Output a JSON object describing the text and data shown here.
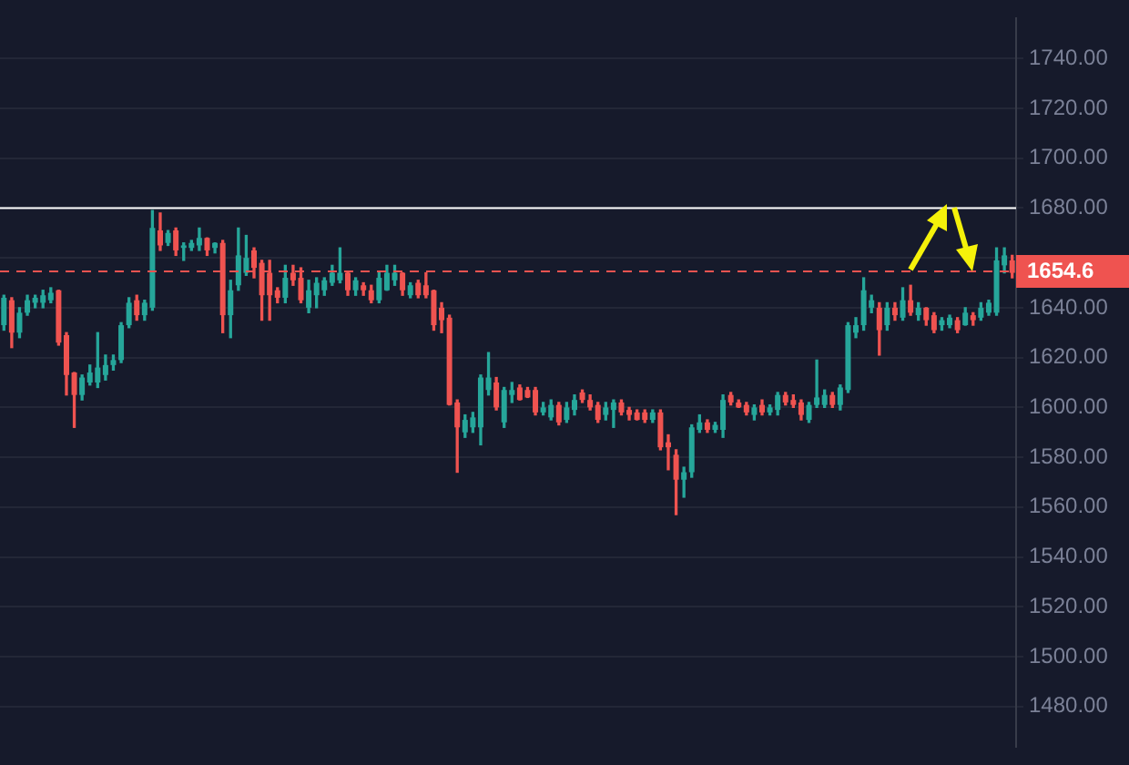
{
  "chart_data": {
    "type": "candlestick",
    "categories": [
      null,
      null,
      null,
      null,
      null,
      null,
      null,
      null,
      null,
      null,
      null,
      null,
      null,
      null,
      null,
      null,
      null,
      null,
      null,
      null,
      null,
      null,
      null,
      null,
      null,
      null,
      null,
      null,
      null,
      null,
      null,
      null,
      null,
      null,
      null,
      null,
      null,
      null,
      null,
      null,
      null,
      null,
      null,
      null,
      null,
      null,
      null,
      null,
      null,
      null,
      null,
      null,
      null,
      null,
      null,
      null,
      null,
      null,
      null,
      null,
      null,
      null,
      null,
      null,
      null,
      null,
      null,
      null,
      null,
      null,
      null,
      null,
      null,
      null,
      null,
      null,
      null,
      null,
      null,
      null,
      null,
      null,
      null,
      null,
      null,
      null,
      null,
      null,
      null,
      null,
      null,
      null,
      null,
      null,
      null,
      null,
      null,
      null,
      null,
      null,
      null,
      null,
      null,
      null,
      null,
      null,
      null,
      null,
      null,
      null,
      null,
      null,
      null,
      null,
      null,
      null,
      null,
      null,
      null,
      null,
      null,
      null,
      null,
      null,
      null,
      null,
      null,
      null,
      null,
      null
    ],
    "ohlc": [
      [
        1633,
        1645,
        1631,
        1644
      ],
      [
        1643,
        1644,
        1624,
        1630
      ],
      [
        1630,
        1640,
        1628,
        1638
      ],
      [
        1638,
        1645,
        1637,
        1643
      ],
      [
        1642,
        1645,
        1640,
        1644
      ],
      [
        1642,
        1647,
        1640,
        1645
      ],
      [
        1643,
        1648,
        1642,
        1646
      ],
      [
        1647,
        1647,
        1625,
        1626
      ],
      [
        1629,
        1630,
        1605,
        1613
      ],
      [
        1614,
        1614,
        1592,
        1605
      ],
      [
        1605,
        1613,
        1603,
        1612
      ],
      [
        1610,
        1617,
        1609,
        1614
      ],
      [
        1610,
        1630,
        1608,
        1616
      ],
      [
        1613,
        1621,
        1611,
        1617
      ],
      [
        1617,
        1621,
        1615,
        1619
      ],
      [
        1619,
        1634,
        1618,
        1633
      ],
      [
        1633,
        1644,
        1632,
        1642
      ],
      [
        1643,
        1645,
        1635,
        1637
      ],
      [
        1637,
        1643,
        1635,
        1642
      ],
      [
        1640,
        1679,
        1639,
        1672
      ],
      [
        1671,
        1678,
        1663,
        1665
      ],
      [
        1666,
        1671,
        1665,
        1670
      ],
      [
        1671,
        1672,
        1661,
        1663
      ],
      [
        1664,
        1666,
        1659,
        1665
      ],
      [
        1664,
        1667,
        1663,
        1666
      ],
      [
        1665,
        1672,
        1663,
        1668
      ],
      [
        1668,
        1668,
        1661,
        1663
      ],
      [
        1664,
        1666,
        1662,
        1666
      ],
      [
        1666,
        1667,
        1630,
        1637
      ],
      [
        1637,
        1651,
        1628,
        1647
      ],
      [
        1649,
        1672,
        1647,
        1661
      ],
      [
        1654,
        1669,
        1653,
        1660
      ],
      [
        1663,
        1664,
        1652,
        1656
      ],
      [
        1658,
        1659,
        1635,
        1645
      ],
      [
        1654,
        1659,
        1635,
        1645
      ],
      [
        1647,
        1648,
        1642,
        1644
      ],
      [
        1644,
        1657,
        1642,
        1652
      ],
      [
        1654,
        1657,
        1649,
        1651
      ],
      [
        1652,
        1656,
        1642,
        1643
      ],
      [
        1640,
        1651,
        1638,
        1647
      ],
      [
        1645,
        1652,
        1640,
        1650
      ],
      [
        1647,
        1652,
        1645,
        1651
      ],
      [
        1650,
        1657,
        1649,
        1654
      ],
      [
        1651,
        1664,
        1650,
        1654
      ],
      [
        1654,
        1654,
        1645,
        1647
      ],
      [
        1647,
        1652,
        1645,
        1651
      ],
      [
        1649,
        1650,
        1645,
        1647
      ],
      [
        1647,
        1649,
        1642,
        1643
      ],
      [
        1643,
        1654,
        1642,
        1652
      ],
      [
        1647,
        1657,
        1647,
        1654
      ],
      [
        1651,
        1657,
        1649,
        1654
      ],
      [
        1654,
        1654,
        1645,
        1647
      ],
      [
        1645,
        1650,
        1644,
        1649
      ],
      [
        1650,
        1651,
        1644,
        1645
      ],
      [
        1649,
        1654,
        1644,
        1645
      ],
      [
        1647,
        1647,
        1631,
        1633
      ],
      [
        1640,
        1642,
        1630,
        1635
      ],
      [
        1636,
        1637,
        1601,
        1601
      ],
      [
        1602,
        1603,
        1574,
        1592
      ],
      [
        1590,
        1597,
        1588,
        1595
      ],
      [
        1592,
        1598,
        1590,
        1596
      ],
      [
        1592,
        1613,
        1585,
        1612
      ],
      [
        1607,
        1622,
        1605,
        1612
      ],
      [
        1610,
        1612,
        1599,
        1600
      ],
      [
        1594,
        1608,
        1592,
        1607
      ],
      [
        1605,
        1610,
        1602,
        1607
      ],
      [
        1608,
        1609,
        1603,
        1603
      ],
      [
        1607,
        1608,
        1604,
        1604
      ],
      [
        1607,
        1608,
        1597,
        1598
      ],
      [
        1598,
        1602,
        1597,
        1600
      ],
      [
        1596,
        1603,
        1595,
        1601
      ],
      [
        1601,
        1602,
        1593,
        1594
      ],
      [
        1595,
        1602,
        1594,
        1600
      ],
      [
        1599,
        1605,
        1597,
        1603
      ],
      [
        1606,
        1607,
        1602,
        1603
      ],
      [
        1603,
        1605,
        1599,
        1600
      ],
      [
        1601,
        1602,
        1594,
        1595
      ],
      [
        1597,
        1602,
        1595,
        1600
      ],
      [
        1599,
        1603,
        1592,
        1602
      ],
      [
        1602,
        1603,
        1597,
        1598
      ],
      [
        1599,
        1600,
        1595,
        1597
      ],
      [
        1598,
        1599,
        1595,
        1595
      ],
      [
        1598,
        1599,
        1594,
        1595
      ],
      [
        1595,
        1599,
        1594,
        1598
      ],
      [
        1598,
        1599,
        1583,
        1584
      ],
      [
        1586,
        1589,
        1575,
        1584
      ],
      [
        1581,
        1583,
        1557,
        1571
      ],
      [
        1571,
        1576,
        1564,
        1574
      ],
      [
        1574,
        1593,
        1572,
        1592
      ],
      [
        1591,
        1597,
        1590,
        1594
      ],
      [
        1594,
        1595,
        1590,
        1591
      ],
      [
        1591,
        1594,
        1590,
        1593
      ],
      [
        1591,
        1605,
        1588,
        1603
      ],
      [
        1605,
        1606,
        1601,
        1602
      ],
      [
        1602,
        1603,
        1600,
        1600
      ],
      [
        1601,
        1602,
        1597,
        1598
      ],
      [
        1597,
        1601,
        1595,
        1600
      ],
      [
        1601,
        1603,
        1597,
        1598
      ],
      [
        1598,
        1601,
        1597,
        1600
      ],
      [
        1599,
        1606,
        1597,
        1605
      ],
      [
        1605,
        1606,
        1601,
        1602
      ],
      [
        1603,
        1605,
        1600,
        1601
      ],
      [
        1602,
        1603,
        1595,
        1597
      ],
      [
        1595,
        1602,
        1594,
        1601
      ],
      [
        1601,
        1619,
        1600,
        1604
      ],
      [
        1601,
        1607,
        1600,
        1605
      ],
      [
        1605,
        1606,
        1600,
        1601
      ],
      [
        1601,
        1609,
        1599,
        1608
      ],
      [
        1607,
        1634,
        1606,
        1633
      ],
      [
        1630,
        1636,
        1628,
        1633
      ],
      [
        1633,
        1652,
        1631,
        1647
      ],
      [
        1640,
        1645,
        1638,
        1643
      ],
      [
        1640,
        1642,
        1621,
        1631
      ],
      [
        1633,
        1642,
        1631,
        1640
      ],
      [
        1640,
        1642,
        1635,
        1637
      ],
      [
        1636,
        1648,
        1635,
        1643
      ],
      [
        1643,
        1649,
        1637,
        1638
      ],
      [
        1637,
        1642,
        1635,
        1640
      ],
      [
        1640,
        1640,
        1633,
        1635
      ],
      [
        1637,
        1638,
        1630,
        1631
      ],
      [
        1633,
        1636,
        1631,
        1635
      ],
      [
        1633,
        1637,
        1632,
        1636
      ],
      [
        1635,
        1636,
        1630,
        1631
      ],
      [
        1633,
        1640,
        1633,
        1638
      ],
      [
        1637,
        1638,
        1633,
        1635
      ],
      [
        1636,
        1642,
        1635,
        1640
      ],
      [
        1638,
        1643,
        1637,
        1642
      ],
      [
        1638,
        1664,
        1637,
        1659
      ],
      [
        1657,
        1664,
        1654,
        1661
      ],
      [
        1659,
        1661,
        1652,
        1654
      ]
    ],
    "colors": [
      "#26a69a",
      "#ef5350",
      "#26a69a",
      "#26a69a",
      "#26a69a",
      "#26a69a",
      "#26a69a",
      "#ef5350",
      "#ef5350",
      "#ef5350",
      "#26a69a",
      "#26a69a",
      "#26a69a",
      "#26a69a",
      "#26a69a",
      "#26a69a",
      "#26a69a",
      "#ef5350",
      "#26a69a",
      "#26a69a",
      "#ef5350",
      "#26a69a",
      "#ef5350",
      "#26a69a",
      "#26a69a",
      "#26a69a",
      "#ef5350",
      "#26a69a",
      "#ef5350",
      "#26a69a",
      "#26a69a",
      "#26a69a",
      "#ef5350",
      "#ef5350",
      "#ef5350",
      "#ef5350",
      "#26a69a",
      "#ef5350",
      "#ef5350",
      "#26a69a",
      "#26a69a",
      "#26a69a",
      "#26a69a",
      "#26a69a",
      "#ef5350",
      "#26a69a",
      "#ef5350",
      "#ef5350",
      "#26a69a",
      "#26a69a",
      "#26a69a",
      "#ef5350",
      "#26a69a",
      "#ef5350",
      "#ef5350",
      "#ef5350",
      "#ef5350",
      "#ef5350",
      "#ef5350",
      "#26a69a",
      "#26a69a",
      "#26a69a",
      "#26a69a",
      "#ef5350",
      "#26a69a",
      "#26a69a",
      "#ef5350",
      "#ef5350",
      "#ef5350",
      "#26a69a",
      "#26a69a",
      "#ef5350",
      "#26a69a",
      "#26a69a",
      "#ef5350",
      "#ef5350",
      "#ef5350",
      "#26a69a",
      "#26a69a",
      "#ef5350",
      "#ef5350",
      "#ef5350",
      "#ef5350",
      "#26a69a",
      "#ef5350",
      "#ef5350",
      "#ef5350",
      "#26a69a",
      "#26a69a",
      "#26a69a",
      "#ef5350",
      "#26a69a",
      "#26a69a",
      "#ef5350",
      "#ef5350",
      "#ef5350",
      "#26a69a",
      "#ef5350",
      "#26a69a",
      "#26a69a",
      "#ef5350",
      "#ef5350",
      "#ef5350",
      "#26a69a",
      "#26a69a",
      "#26a69a",
      "#ef5350",
      "#26a69a",
      "#26a69a",
      "#26a69a",
      "#26a69a",
      "#26a69a",
      "#ef5350",
      "#26a69a",
      "#ef5350",
      "#26a69a",
      "#ef5350",
      "#26a69a",
      "#ef5350",
      "#ef5350",
      "#26a69a",
      "#26a69a",
      "#ef5350",
      "#26a69a",
      "#ef5350",
      "#26a69a",
      "#26a69a",
      "#26a69a",
      "#26a69a",
      "#ef5350"
    ],
    "ylim": [
      1464,
      1756
    ],
    "yticks": [
      {
        "value": 1480,
        "label": "1480.00"
      },
      {
        "value": 1500,
        "label": "1500.00"
      },
      {
        "value": 1520,
        "label": "1520.00"
      },
      {
        "value": 1540,
        "label": "1540.00"
      },
      {
        "value": 1560,
        "label": "1560.00"
      },
      {
        "value": 1580,
        "label": "1580.00"
      },
      {
        "value": 1600,
        "label": "1600.00"
      },
      {
        "value": 1620,
        "label": "1620.00"
      },
      {
        "value": 1640,
        "label": "1640.00"
      },
      {
        "value": 1660,
        "label": null
      },
      {
        "value": 1680,
        "label": "1680.00"
      },
      {
        "value": 1700,
        "label": "1700.00"
      },
      {
        "value": 1720,
        "label": "1720.00"
      },
      {
        "value": 1740,
        "label": "1740.00"
      }
    ],
    "ref_lines": [
      {
        "axis": "y",
        "value": 1680,
        "color": "#ffffff",
        "line_style": "solid"
      },
      {
        "axis": "y",
        "value": 1654.6,
        "label": "1654.6",
        "color": "#ef5350",
        "line_style": "dashed"
      }
    ],
    "grid": "y",
    "tick_labels": "y",
    "legend": false
  }
}
